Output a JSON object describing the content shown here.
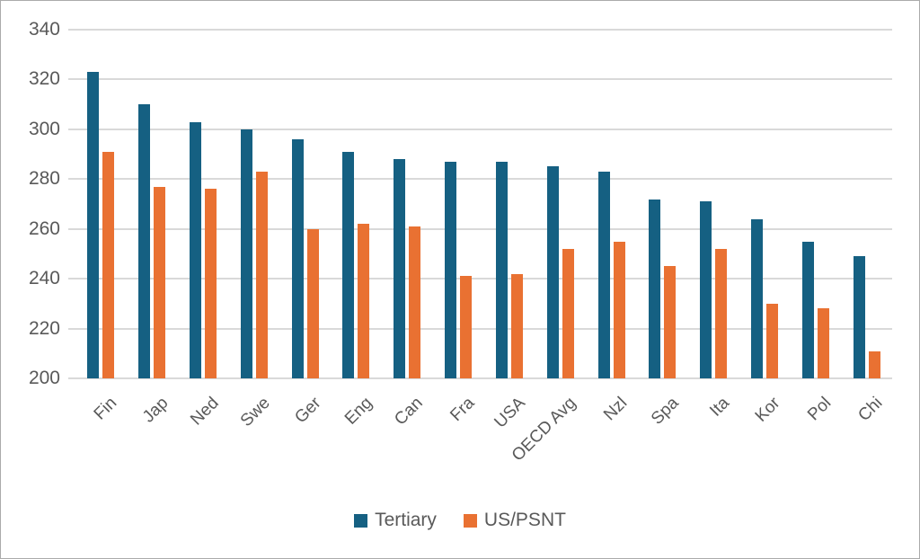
{
  "chart_data": {
    "type": "bar",
    "title": "",
    "categories": [
      "Fin",
      "Jap",
      "Ned",
      "Swe",
      "Ger",
      "Eng",
      "Can",
      "Fra",
      "USA",
      "OECD Avg",
      "Nzl",
      "Spa",
      "Ita",
      "Kor",
      "Pol",
      "Chi"
    ],
    "series": [
      {
        "name": "Tertiary",
        "color": "#156082",
        "values": [
          323,
          310,
          303,
          300,
          296,
          291,
          288,
          287,
          287,
          285,
          283,
          272,
          271,
          264,
          255,
          249
        ]
      },
      {
        "name": "US/PSNT",
        "color": "#E97132",
        "values": [
          291,
          277,
          276,
          283,
          260,
          262,
          261,
          241,
          242,
          252,
          255,
          245,
          252,
          230,
          228,
          211
        ]
      }
    ],
    "ylim": [
      200,
      340
    ],
    "yticks": [
      200,
      220,
      240,
      260,
      280,
      300,
      320,
      340
    ],
    "xlabel": "",
    "ylabel": "",
    "grid": true,
    "legend_position": "bottom",
    "axis_text_color": "#595959",
    "gridline_color": "#D9D9D9",
    "bar_colors": {
      "tertiary": "#156082",
      "us_psnt": "#E97132"
    },
    "background_color": "#FFFFFF",
    "border_color": "#ABABAB"
  }
}
